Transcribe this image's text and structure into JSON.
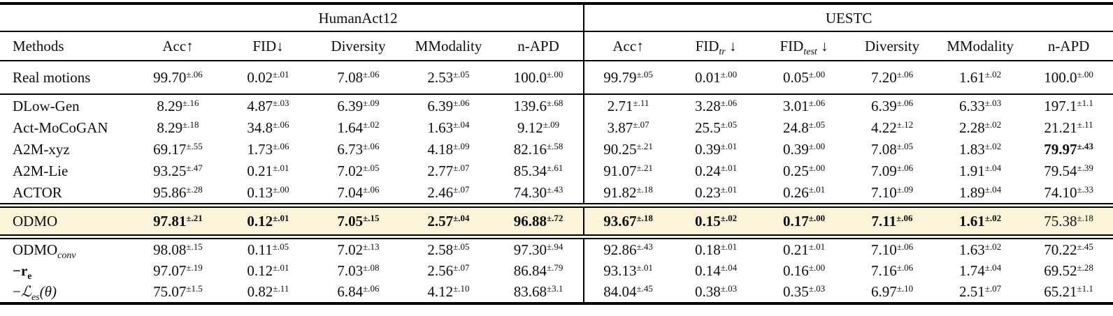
{
  "style": {
    "highlight_color": "#fcf3da",
    "rule_color": "#000000",
    "text_color": "#0e0e0e"
  },
  "table": {
    "group_headers": [
      {
        "label": "",
        "span": 1
      },
      {
        "label": "HumanAct12",
        "span": 5
      },
      {
        "label": "UESTC",
        "span": 6
      }
    ],
    "columns": [
      {
        "label": "Methods",
        "sub": "",
        "arrow": ""
      },
      {
        "label": "Acc",
        "sub": "",
        "arrow": "↑"
      },
      {
        "label": "FID",
        "sub": "",
        "arrow": "↓"
      },
      {
        "label": "Diversity",
        "sub": "",
        "arrow": ""
      },
      {
        "label": "MModality",
        "sub": "",
        "arrow": ""
      },
      {
        "label": "n-APD",
        "sub": "",
        "arrow": ""
      },
      {
        "label": "Acc",
        "sub": "",
        "arrow": "↑"
      },
      {
        "label": "FID",
        "sub": "tr",
        "arrow": " ↓"
      },
      {
        "label": "FID",
        "sub": "test",
        "arrow": " ↓"
      },
      {
        "label": "Diversity",
        "sub": "",
        "arrow": ""
      },
      {
        "label": "MModality",
        "sub": "",
        "arrow": ""
      },
      {
        "label": "n-APD",
        "sub": "",
        "arrow": ""
      }
    ],
    "sections": [
      {
        "name": "real-motions",
        "rows": [
          {
            "label": [
              {
                "t": "Real motions"
              }
            ],
            "cells": [
              {
                "v": "99.70",
                "e": "±.06"
              },
              {
                "v": "0.02",
                "e": "±.01"
              },
              {
                "v": "7.08",
                "e": "±.06"
              },
              {
                "v": "2.53",
                "e": "±.05"
              },
              {
                "v": "100.0",
                "e": "±.00"
              },
              {
                "v": "99.79",
                "e": "±.05"
              },
              {
                "v": "0.01",
                "e": "±.00"
              },
              {
                "v": "0.05",
                "e": "±.00"
              },
              {
                "v": "7.20",
                "e": "±.06"
              },
              {
                "v": "1.61",
                "e": "±.02"
              },
              {
                "v": "100.0",
                "e": "±.00"
              }
            ]
          }
        ]
      },
      {
        "name": "baselines",
        "rows": [
          {
            "label": [
              {
                "t": "DLow-Gen"
              }
            ],
            "cells": [
              {
                "v": "8.29",
                "e": "±.16"
              },
              {
                "v": "4.87",
                "e": "±.03"
              },
              {
                "v": "6.39",
                "e": "±.09"
              },
              {
                "v": "6.39",
                "e": "±.06"
              },
              {
                "v": "139.6",
                "e": "±.68"
              },
              {
                "v": "2.71",
                "e": "±.11"
              },
              {
                "v": "3.28",
                "e": "±.06"
              },
              {
                "v": "3.01",
                "e": "±.06"
              },
              {
                "v": "6.39",
                "e": "±.06"
              },
              {
                "v": "6.33",
                "e": "±.03"
              },
              {
                "v": "197.1",
                "e": "±1.1"
              }
            ]
          },
          {
            "label": [
              {
                "t": "Act-MoCoGAN"
              }
            ],
            "cells": [
              {
                "v": "8.29",
                "e": "±.18"
              },
              {
                "v": "34.8",
                "e": "±.06"
              },
              {
                "v": "1.64",
                "e": "±.02"
              },
              {
                "v": "1.63",
                "e": "±.04"
              },
              {
                "v": "9.12",
                "e": "±.09"
              },
              {
                "v": "3.87",
                "e": "±.07"
              },
              {
                "v": "25.5",
                "e": "±.05"
              },
              {
                "v": "24.8",
                "e": "±.05"
              },
              {
                "v": "4.22",
                "e": "±.12"
              },
              {
                "v": "2.28",
                "e": "±.02"
              },
              {
                "v": "21.21",
                "e": "±.11"
              }
            ]
          },
          {
            "label": [
              {
                "t": "A2M-xyz"
              }
            ],
            "cells": [
              {
                "v": "69.17",
                "e": "±.55"
              },
              {
                "v": "1.73",
                "e": "±.06"
              },
              {
                "v": "6.73",
                "e": "±.06"
              },
              {
                "v": "4.18",
                "e": "±.09"
              },
              {
                "v": "82.16",
                "e": "±.58"
              },
              {
                "v": "90.25",
                "e": "±.21"
              },
              {
                "v": "0.39",
                "e": "±.01"
              },
              {
                "v": "0.39",
                "e": "±.00"
              },
              {
                "v": "7.08",
                "e": "±.05"
              },
              {
                "v": "1.83",
                "e": "±.02"
              },
              {
                "v": "79.97",
                "e": "±.43",
                "b": true
              }
            ]
          },
          {
            "label": [
              {
                "t": "A2M-Lie"
              }
            ],
            "cells": [
              {
                "v": "93.25",
                "e": "±.47"
              },
              {
                "v": "0.21",
                "e": "±.01"
              },
              {
                "v": "7.02",
                "e": "±.05"
              },
              {
                "v": "2.77",
                "e": "±.07"
              },
              {
                "v": "85.34",
                "e": "±.61"
              },
              {
                "v": "91.07",
                "e": "±.21"
              },
              {
                "v": "0.24",
                "e": "±.01"
              },
              {
                "v": "0.25",
                "e": "±.00"
              },
              {
                "v": "7.09",
                "e": "±.06"
              },
              {
                "v": "1.91",
                "e": "±.04"
              },
              {
                "v": "79.54",
                "e": "±.39"
              }
            ]
          },
          {
            "label": [
              {
                "t": "ACTOR"
              }
            ],
            "cells": [
              {
                "v": "95.86",
                "e": "±.28"
              },
              {
                "v": "0.13",
                "e": "±.00"
              },
              {
                "v": "7.04",
                "e": "±.06"
              },
              {
                "v": "2.46",
                "e": "±.07"
              },
              {
                "v": "74.30",
                "e": "±.43"
              },
              {
                "v": "91.82",
                "e": "±.18"
              },
              {
                "v": "0.23",
                "e": "±.01"
              },
              {
                "v": "0.26",
                "e": "±.01"
              },
              {
                "v": "7.10",
                "e": "±.09"
              },
              {
                "v": "1.89",
                "e": "±.04"
              },
              {
                "v": "74.10",
                "e": "±.33"
              }
            ]
          }
        ]
      },
      {
        "name": "odmo",
        "rows": [
          {
            "label": [
              {
                "t": "ODMO"
              }
            ],
            "highlight": true,
            "cells": [
              {
                "v": "97.81",
                "e": "±.21",
                "b": true
              },
              {
                "v": "0.12",
                "e": "±.01",
                "b": true
              },
              {
                "v": "7.05",
                "e": "±.15",
                "b": true
              },
              {
                "v": "2.57",
                "e": "±.04",
                "b": true
              },
              {
                "v": "96.88",
                "e": "±.72",
                "b": true
              },
              {
                "v": "93.67",
                "e": "±.18",
                "b": true
              },
              {
                "v": "0.15",
                "e": "±.02",
                "b": true
              },
              {
                "v": "0.17",
                "e": "±.00",
                "b": true
              },
              {
                "v": "7.11",
                "e": "±.06",
                "b": true
              },
              {
                "v": "1.61",
                "e": "±.02",
                "b": true
              },
              {
                "v": "75.38",
                "e": "±.18"
              }
            ]
          }
        ]
      },
      {
        "name": "ablations",
        "rows": [
          {
            "label": [
              {
                "t": "ODMO"
              },
              {
                "t": "conv",
                "sub": true,
                "i": true
              }
            ],
            "cells": [
              {
                "v": "98.08",
                "e": "±.15"
              },
              {
                "v": "0.11",
                "e": "±.05"
              },
              {
                "v": "7.02",
                "e": "±.13"
              },
              {
                "v": "2.58",
                "e": "±.05"
              },
              {
                "v": "97.30",
                "e": "±.94"
              },
              {
                "v": "92.86",
                "e": "±.43"
              },
              {
                "v": "0.18",
                "e": "±.01"
              },
              {
                "v": "0.21",
                "e": "±.01"
              },
              {
                "v": "7.10",
                "e": "±.06"
              },
              {
                "v": "1.63",
                "e": "±.02"
              },
              {
                "v": "70.22",
                "e": "±.45"
              }
            ]
          },
          {
            "label": [
              {
                "t": "−r",
                "b": true
              },
              {
                "t": "e",
                "sub": true,
                "b": true
              }
            ],
            "cells": [
              {
                "v": "97.07",
                "e": "±.19"
              },
              {
                "v": "0.12",
                "e": "±.01"
              },
              {
                "v": "7.03",
                "e": "±.08"
              },
              {
                "v": "2.56",
                "e": "±.07"
              },
              {
                "v": "86.84",
                "e": "±.79"
              },
              {
                "v": "93.13",
                "e": "±.01"
              },
              {
                "v": "0.14",
                "e": "±.04"
              },
              {
                "v": "0.16",
                "e": "±.00"
              },
              {
                "v": "7.16",
                "e": "±.06"
              },
              {
                "v": "1.74",
                "e": "±.04"
              },
              {
                "v": "69.52",
                "e": "±.28"
              }
            ]
          },
          {
            "label": [
              {
                "t": "−"
              },
              {
                "t": "ℒ",
                "i": true
              },
              {
                "t": "es",
                "sub": true,
                "i": true
              },
              {
                "t": "(θ)",
                "i": true
              }
            ],
            "cells": [
              {
                "v": "75.07",
                "e": "±1.5"
              },
              {
                "v": "0.82",
                "e": "±.11"
              },
              {
                "v": "6.84",
                "e": "±.06"
              },
              {
                "v": "4.12",
                "e": "±.10"
              },
              {
                "v": "83.68",
                "e": "±3.1"
              },
              {
                "v": "84.04",
                "e": "±.45"
              },
              {
                "v": "0.38",
                "e": "±.03"
              },
              {
                "v": "0.35",
                "e": "±.03"
              },
              {
                "v": "6.97",
                "e": "±.10"
              },
              {
                "v": "2.51",
                "e": "±.07"
              },
              {
                "v": "65.21",
                "e": "±1.1"
              }
            ]
          }
        ]
      }
    ]
  }
}
